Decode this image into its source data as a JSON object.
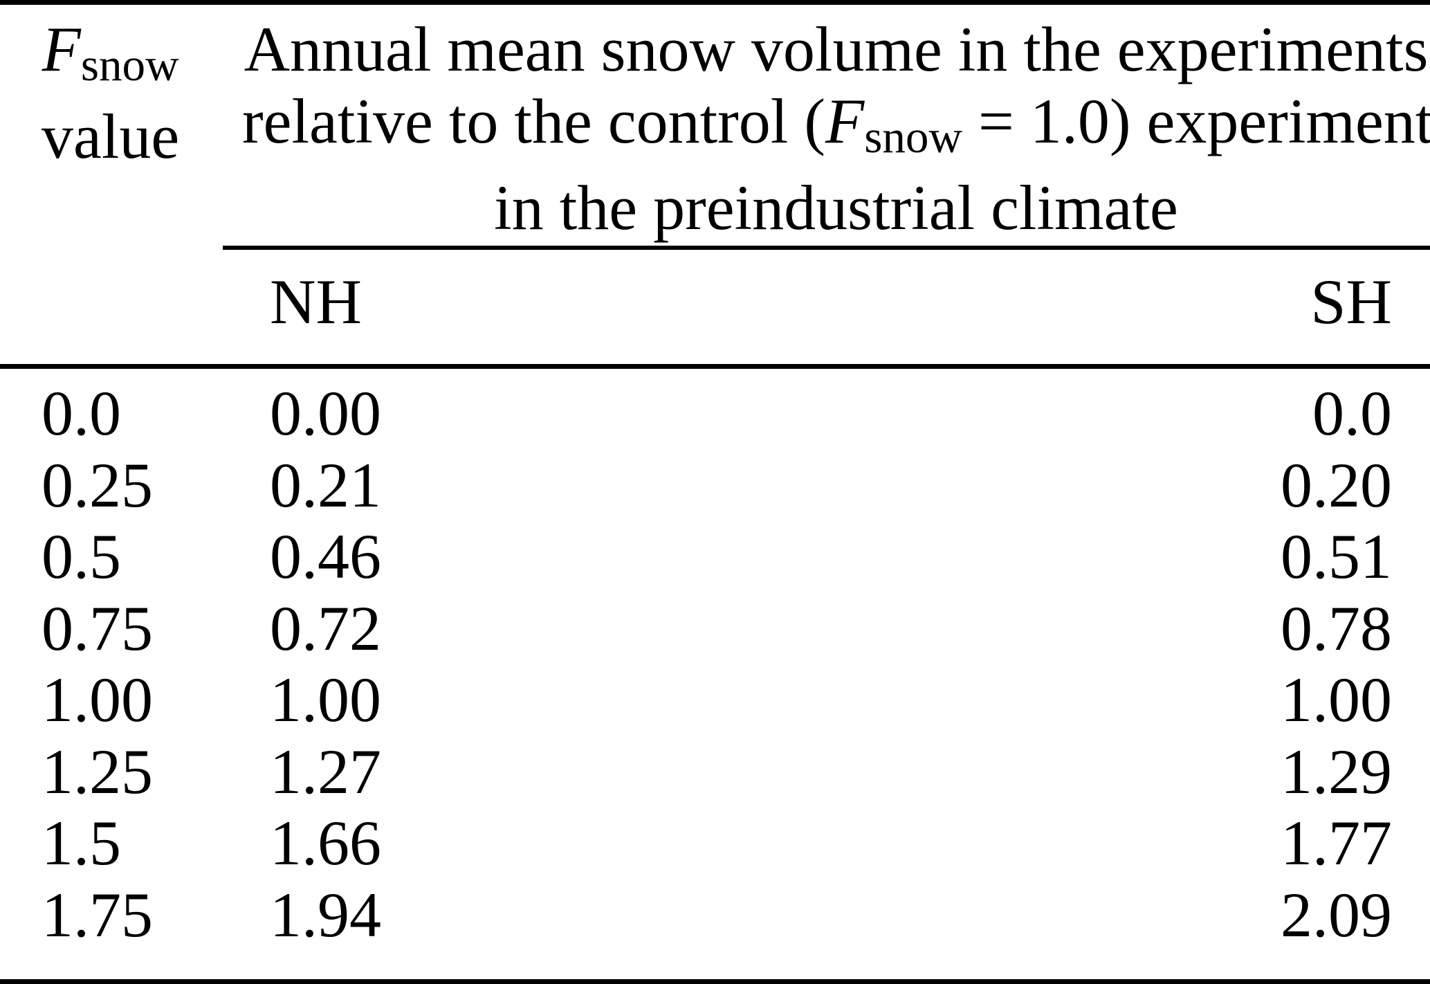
{
  "table": {
    "colors": {
      "background": "#ffffff",
      "text": "#000000",
      "rule": "#000000"
    },
    "col1_header": {
      "symbol": "F",
      "symbol_sub": "snow",
      "line2": "value"
    },
    "span_header": {
      "line1": "Annual mean snow volume in the experiments",
      "line2_pre": "relative to the control (",
      "line2_symbol": "F",
      "line2_symbol_sub": "snow",
      "line2_post": " = 1.0) experiment",
      "line3": "in the preindustrial climate"
    },
    "columns": {
      "nh": "NH",
      "sh": "SH"
    },
    "rows": [
      {
        "fsnow": "0.0",
        "nh": "0.00",
        "sh": "0.0"
      },
      {
        "fsnow": "0.25",
        "nh": "0.21",
        "sh": "0.20"
      },
      {
        "fsnow": "0.5",
        "nh": "0.46",
        "sh": "0.51"
      },
      {
        "fsnow": "0.75",
        "nh": "0.72",
        "sh": "0.78"
      },
      {
        "fsnow": "1.00",
        "nh": "1.00",
        "sh": "1.00"
      },
      {
        "fsnow": "1.25",
        "nh": "1.27",
        "sh": "1.29"
      },
      {
        "fsnow": "1.5",
        "nh": "1.66",
        "sh": "1.77"
      },
      {
        "fsnow": "1.75",
        "nh": "1.94",
        "sh": "2.09"
      }
    ]
  }
}
